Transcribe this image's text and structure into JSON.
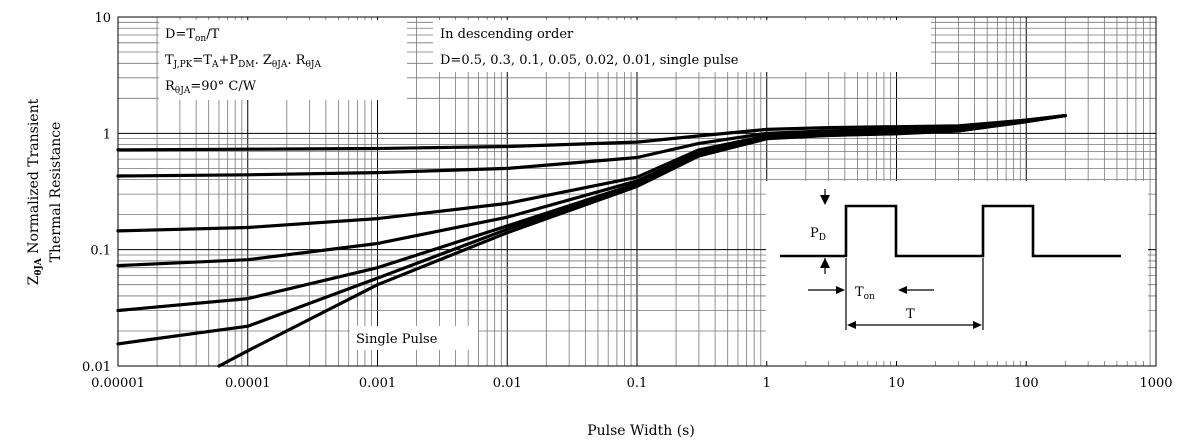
{
  "chart_data": {
    "type": "line",
    "title": "",
    "xlabel": "Pulse Width (s)",
    "ylabel_line1_prefix": "Z",
    "ylabel_line1_sub": "θJA",
    "ylabel_line1_rest": " Normalized Transient",
    "ylabel_line2": "Thermal Resistance",
    "x_scale": "log",
    "y_scale": "log",
    "xlim": [
      1e-05,
      1000
    ],
    "ylim": [
      0.01,
      10
    ],
    "grid": true,
    "x_tick_labels": [
      "0.00001",
      "0.0001",
      "0.001",
      "0.01",
      "0.1",
      "1",
      "10",
      "100",
      "1000"
    ],
    "y_tick_labels": [
      "0.01",
      "0.1",
      "1",
      "10"
    ],
    "annotations": {
      "duty": {
        "main": "D=T",
        "sub": "on",
        "rest": "/T"
      },
      "tjpk": "T_J,PK = T_A + P_DM . Z_θJA . R_θJA",
      "tjpk_parts": {
        "t": "T",
        "tsub": "J,PK",
        "eq1": "=T",
        "asub": "A",
        "plus": "+P",
        "dmsub": "DM",
        "dot1": ". Z",
        "zsub": "θJA",
        "dot2": ". R",
        "rsub": "θJA"
      },
      "rth": {
        "main": "R",
        "sub": "θJA",
        "rest": "=90° C/W"
      },
      "order_line1": "In descending order",
      "order_line2": "D=0.5, 0.3, 0.1, 0.05, 0.02, 0.01, single pulse",
      "single_pulse": "Single Pulse"
    },
    "inset": {
      "pd": {
        "main": "P",
        "sub": "D"
      },
      "ton": {
        "main": "T",
        "sub": "on"
      },
      "period": "T"
    },
    "series": [
      {
        "values": [
          [
            1e-05,
            0.72
          ],
          [
            0.0001,
            0.73
          ],
          [
            0.001,
            0.74
          ],
          [
            0.01,
            0.77
          ],
          [
            0.1,
            0.84
          ],
          [
            0.3,
            0.95
          ],
          [
            1,
            1.08
          ],
          [
            3,
            1.12
          ],
          [
            10,
            1.14
          ],
          [
            30,
            1.16
          ],
          [
            100,
            1.3
          ],
          [
            200,
            1.42
          ]
        ]
      },
      {
        "values": [
          [
            1e-05,
            0.43
          ],
          [
            0.0001,
            0.44
          ],
          [
            0.001,
            0.46
          ],
          [
            0.01,
            0.5
          ],
          [
            0.1,
            0.62
          ],
          [
            0.3,
            0.82
          ],
          [
            1,
            1.0
          ],
          [
            3,
            1.05
          ],
          [
            10,
            1.08
          ],
          [
            30,
            1.12
          ],
          [
            100,
            1.3
          ],
          [
            200,
            1.42
          ]
        ]
      },
      {
        "values": [
          [
            1e-05,
            0.145
          ],
          [
            0.0001,
            0.155
          ],
          [
            0.001,
            0.185
          ],
          [
            0.01,
            0.25
          ],
          [
            0.1,
            0.42
          ],
          [
            0.3,
            0.72
          ],
          [
            1,
            0.95
          ],
          [
            3,
            1.0
          ],
          [
            10,
            1.03
          ],
          [
            30,
            1.08
          ],
          [
            100,
            1.28
          ],
          [
            200,
            1.42
          ]
        ]
      },
      {
        "values": [
          [
            1e-05,
            0.073
          ],
          [
            0.0001,
            0.082
          ],
          [
            0.001,
            0.113
          ],
          [
            0.01,
            0.19
          ],
          [
            0.1,
            0.39
          ],
          [
            0.3,
            0.68
          ],
          [
            1,
            0.93
          ],
          [
            3,
            0.98
          ],
          [
            10,
            1.02
          ],
          [
            30,
            1.07
          ],
          [
            100,
            1.27
          ],
          [
            200,
            1.42
          ]
        ]
      },
      {
        "values": [
          [
            1e-05,
            0.03
          ],
          [
            0.0001,
            0.038
          ],
          [
            0.001,
            0.07
          ],
          [
            0.01,
            0.16
          ],
          [
            0.1,
            0.37
          ],
          [
            0.3,
            0.66
          ],
          [
            1,
            0.92
          ],
          [
            3,
            0.97
          ],
          [
            10,
            1.0
          ],
          [
            30,
            1.06
          ],
          [
            100,
            1.27
          ],
          [
            200,
            1.42
          ]
        ]
      },
      {
        "values": [
          [
            1e-05,
            0.0155
          ],
          [
            0.0001,
            0.022
          ],
          [
            0.001,
            0.057
          ],
          [
            0.01,
            0.15
          ],
          [
            0.1,
            0.36
          ],
          [
            0.3,
            0.65
          ],
          [
            1,
            0.91
          ],
          [
            3,
            0.96
          ],
          [
            10,
            1.0
          ],
          [
            30,
            1.05
          ],
          [
            100,
            1.26
          ],
          [
            200,
            1.42
          ]
        ]
      },
      {
        "values": [
          [
            6e-05,
            0.01
          ],
          [
            0.0001,
            0.0135
          ],
          [
            0.001,
            0.05
          ],
          [
            0.01,
            0.14
          ],
          [
            0.1,
            0.35
          ],
          [
            0.3,
            0.64
          ],
          [
            1,
            0.9
          ],
          [
            3,
            0.96
          ],
          [
            10,
            0.99
          ],
          [
            30,
            1.05
          ],
          [
            100,
            1.26
          ],
          [
            200,
            1.42
          ]
        ]
      }
    ]
  }
}
